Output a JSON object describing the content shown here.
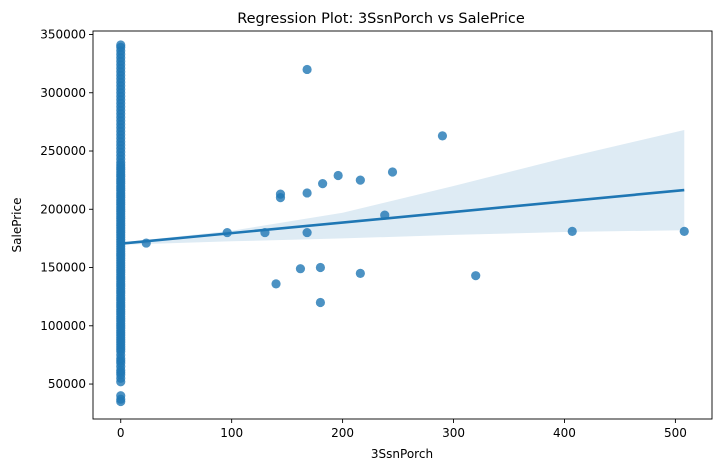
{
  "chart_data": {
    "type": "scatter",
    "title": "Regression Plot: 3SsnPorch vs SalePrice",
    "xlabel": "3SsnPorch",
    "ylabel": "SalePrice",
    "xlim": [
      -25,
      533
    ],
    "ylim": [
      20000,
      353000
    ],
    "xticks": [
      0,
      100,
      200,
      300,
      400,
      500
    ],
    "yticks": [
      50000,
      100000,
      150000,
      200000,
      250000,
      300000,
      350000
    ],
    "grid": false,
    "colors": {
      "points": "#1f77b4",
      "line": "#1f77b4",
      "band": "#1f77b4"
    },
    "zero_column": {
      "x": 0,
      "y_values": [
        35000,
        37000,
        40000,
        52000,
        55000,
        58000,
        60000,
        62000,
        65000,
        68000,
        70000,
        72000,
        75000,
        78000,
        80000,
        82000,
        84000,
        86000,
        88000,
        90000,
        92000,
        94000,
        96000,
        98000,
        100000,
        102000,
        104000,
        106000,
        108000,
        110000,
        112000,
        114000,
        116000,
        118000,
        120000,
        122000,
        124000,
        126000,
        128000,
        130000,
        132000,
        134000,
        136000,
        138000,
        140000,
        142000,
        144000,
        146000,
        148000,
        150000,
        152000,
        154000,
        156000,
        158000,
        160000,
        162000,
        164000,
        166000,
        168000,
        170000,
        172000,
        174000,
        176000,
        178000,
        180000,
        182000,
        184000,
        186000,
        188000,
        190000,
        192000,
        194000,
        196000,
        198000,
        200000,
        202000,
        204000,
        206000,
        208000,
        210000,
        212000,
        214000,
        216000,
        218000,
        220000,
        222000,
        224000,
        226000,
        228000,
        230000,
        232000,
        234000,
        236000,
        238000,
        240000,
        243000,
        246000,
        249000,
        252000,
        255000,
        258000,
        261000,
        264000,
        267000,
        270000,
        273000,
        276000,
        279000,
        282000,
        285000,
        288000,
        291000,
        294000,
        297000,
        300000,
        303000,
        306000,
        309000,
        312000,
        315000,
        318000,
        321000,
        324000,
        327000,
        330000,
        333000,
        336000,
        339000,
        341000
      ]
    },
    "points": [
      {
        "x": 23,
        "y": 171000
      },
      {
        "x": 96,
        "y": 180000
      },
      {
        "x": 130,
        "y": 180000
      },
      {
        "x": 140,
        "y": 136000
      },
      {
        "x": 144,
        "y": 210000
      },
      {
        "x": 144,
        "y": 213000
      },
      {
        "x": 162,
        "y": 149000
      },
      {
        "x": 168,
        "y": 320000
      },
      {
        "x": 168,
        "y": 214000
      },
      {
        "x": 168,
        "y": 180000
      },
      {
        "x": 180,
        "y": 150000
      },
      {
        "x": 180,
        "y": 120000
      },
      {
        "x": 182,
        "y": 222000
      },
      {
        "x": 196,
        "y": 229000
      },
      {
        "x": 216,
        "y": 225000
      },
      {
        "x": 216,
        "y": 145000
      },
      {
        "x": 238,
        "y": 195000
      },
      {
        "x": 245,
        "y": 232000
      },
      {
        "x": 290,
        "y": 263000
      },
      {
        "x": 320,
        "y": 143000
      },
      {
        "x": 407,
        "y": 181000
      },
      {
        "x": 508,
        "y": 181000
      }
    ],
    "regression": {
      "x": [
        0,
        508
      ],
      "y": [
        170500,
        216500
      ]
    },
    "confidence_band": {
      "x": [
        0,
        100,
        200,
        300,
        400,
        508
      ],
      "upper": [
        171500,
        181500,
        197000,
        220000,
        244000,
        268000
      ],
      "lower": [
        169500,
        172500,
        175000,
        178000,
        180500,
        182000
      ]
    }
  }
}
